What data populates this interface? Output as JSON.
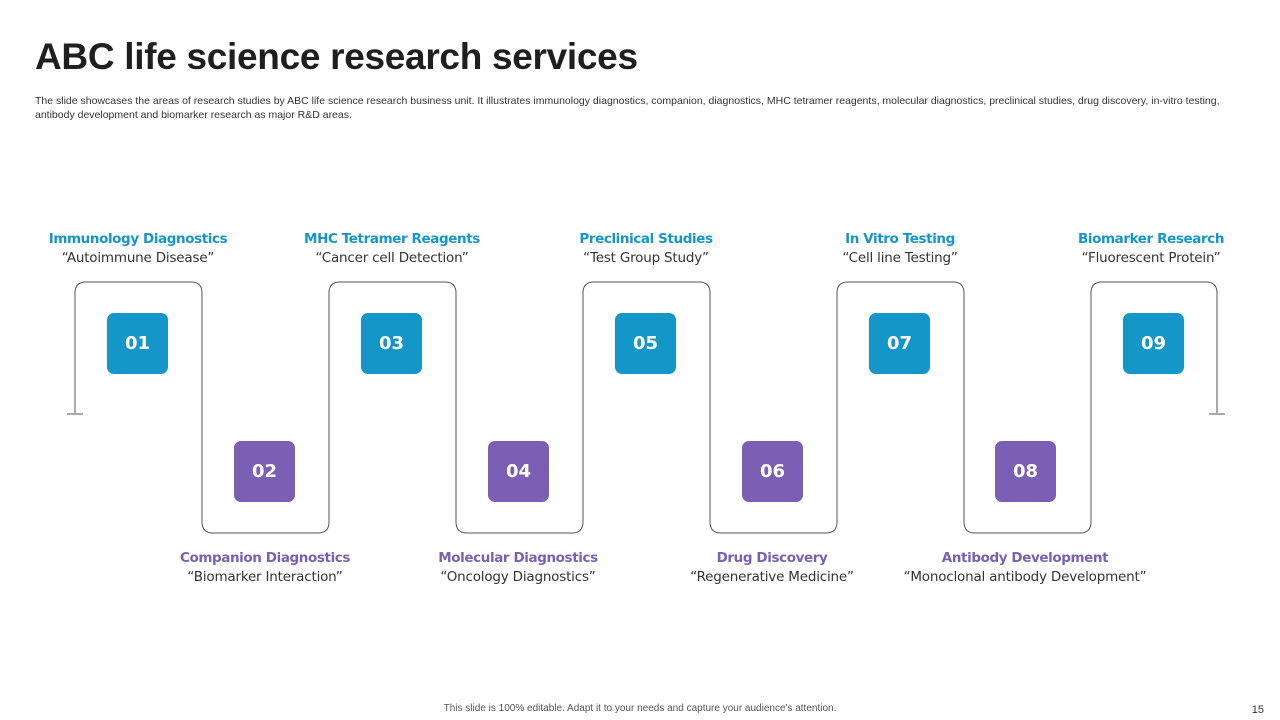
{
  "slide": {
    "title": "ABC life science research services",
    "subtitle": "The slide showcases the areas of research studies by ABC life science research business unit. It illustrates immunology diagnostics, companion, diagnostics, MHC tetramer reagents, molecular diagnostics, preclinical studies, drug discovery, in-vitro testing, antibody development and biomarker research as major R&D areas.",
    "footer": "This slide is 100% editable. Adapt it to your needs and capture your audience's attention.",
    "page_number": "15"
  },
  "colors": {
    "top_accent": "#1596c9",
    "bottom_accent": "#7a5fb5",
    "connector": "#555555"
  },
  "steps": [
    {
      "number": "01",
      "title": "Immunology Diagnostics",
      "quote": "“Autoimmune  Disease”"
    },
    {
      "number": "02",
      "title": "Companion Diagnostics",
      "quote": "“Biomarker  Interaction”"
    },
    {
      "number": "03",
      "title": "MHC Tetramer Reagents",
      "quote": "“Cancer cell Detection”"
    },
    {
      "number": "04",
      "title": "Molecular Diagnostics",
      "quote": "“Oncology Diagnostics”"
    },
    {
      "number": "05",
      "title": "Preclinical Studies",
      "quote": "“Test Group Study”"
    },
    {
      "number": "06",
      "title": "Drug Discovery",
      "quote": "“Regenerative Medicine”"
    },
    {
      "number": "07",
      "title": "In Vitro Testing",
      "quote": "“Cell line Testing”"
    },
    {
      "number": "08",
      "title": "Antibody Development",
      "quote": "“Monoclonal  antibody Development”"
    },
    {
      "number": "09",
      "title": "Biomarker Research",
      "quote": "“Fluorescent Protein”"
    }
  ]
}
